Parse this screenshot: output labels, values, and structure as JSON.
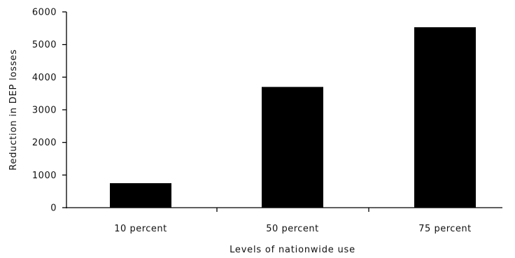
{
  "chart_data": {
    "type": "bar",
    "categories": [
      "10 percent",
      "50 percent",
      "75 percent"
    ],
    "values": [
      750,
      3700,
      5530
    ],
    "xlabel": "Levels of nationwide use",
    "ylabel": "Reduction in DEP losses",
    "ylim": [
      0,
      6000
    ],
    "yticks": [
      0,
      1000,
      2000,
      3000,
      4000,
      5000,
      6000
    ],
    "grid": false,
    "bar_color": "#000000"
  }
}
